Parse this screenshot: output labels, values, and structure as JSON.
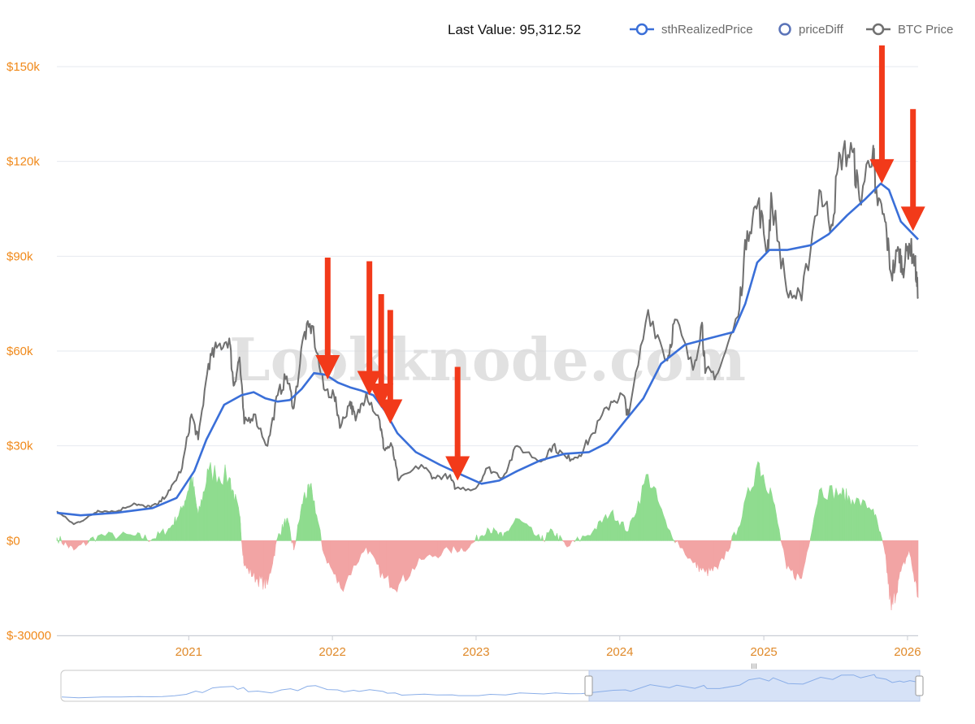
{
  "header": {
    "last_value_label": "Last Value: 95,312.52"
  },
  "legend": [
    {
      "name": "sthRealizedPrice",
      "color": "#3a6fd8"
    },
    {
      "name": "priceDiff",
      "color": "#5a73b8"
    },
    {
      "name": "BTC Price",
      "color": "#707070"
    }
  ],
  "watermark": "Lookknode.com",
  "chart_data": {
    "type": "line",
    "grid": true,
    "legend_position": "top-right",
    "y_ticks": [
      "$150k",
      "$120k",
      "$90k",
      "$60k",
      "$30k",
      "$0",
      "$-30000"
    ],
    "ylim": [
      -30000,
      150000
    ],
    "x_ticks": [
      "2021",
      "2022",
      "2023",
      "2024",
      "2025",
      "2026"
    ],
    "xlim": [
      "2020-02",
      "2026-01"
    ],
    "colors": {
      "sthRealizedPrice": "#3a6fd8",
      "btc_price": "#707070",
      "positive_diff": "#8fdc8f",
      "negative_diff": "#f2a4a4",
      "arrows": "#f23a1a"
    },
    "series": [
      {
        "name": "BTC Price",
        "points": [
          [
            "2020-02-01",
            9300
          ],
          [
            "2020-03-15",
            5200
          ],
          [
            "2020-04-15",
            7000
          ],
          [
            "2020-05-15",
            9500
          ],
          [
            "2020-07-01",
            9200
          ],
          [
            "2020-08-15",
            11800
          ],
          [
            "2020-09-15",
            10600
          ],
          [
            "2020-10-15",
            11500
          ],
          [
            "2020-11-15",
            16000
          ],
          [
            "2020-12-15",
            23000
          ],
          [
            "2021-01-08",
            40000
          ],
          [
            "2021-01-25",
            32000
          ],
          [
            "2021-02-20",
            56000
          ],
          [
            "2021-03-13",
            61000
          ],
          [
            "2021-04-14",
            64000
          ],
          [
            "2021-04-25",
            49000
          ],
          [
            "2021-05-10",
            58000
          ],
          [
            "2021-05-22",
            37000
          ],
          [
            "2021-06-15",
            40000
          ],
          [
            "2021-07-20",
            30000
          ],
          [
            "2021-08-15",
            46000
          ],
          [
            "2021-09-07",
            52000
          ],
          [
            "2021-09-25",
            42000
          ],
          [
            "2021-10-20",
            65000
          ],
          [
            "2021-11-10",
            68000
          ],
          [
            "2021-12-10",
            48000
          ],
          [
            "2022-01-05",
            46000
          ],
          [
            "2022-01-22",
            36000
          ],
          [
            "2022-02-15",
            44000
          ],
          [
            "2022-03-01",
            38000
          ],
          [
            "2022-03-28",
            47000
          ],
          [
            "2022-05-01",
            38000
          ],
          [
            "2022-05-12",
            29000
          ],
          [
            "2022-06-01",
            30000
          ],
          [
            "2022-06-18",
            19000
          ],
          [
            "2022-08-15",
            24000
          ],
          [
            "2022-09-15",
            20000
          ],
          [
            "2022-10-25",
            20500
          ],
          [
            "2022-11-10",
            16500
          ],
          [
            "2022-12-31",
            16500
          ],
          [
            "2023-01-30",
            23000
          ],
          [
            "2023-03-10",
            20000
          ],
          [
            "2023-04-15",
            30000
          ],
          [
            "2023-06-15",
            25000
          ],
          [
            "2023-07-15",
            30000
          ],
          [
            "2023-08-20",
            26000
          ],
          [
            "2023-09-20",
            27000
          ],
          [
            "2023-10-25",
            34000
          ],
          [
            "2023-12-10",
            44000
          ],
          [
            "2024-01-10",
            46000
          ],
          [
            "2024-01-23",
            39000
          ],
          [
            "2024-03-13",
            73000
          ],
          [
            "2024-05-01",
            57000
          ],
          [
            "2024-05-20",
            70000
          ],
          [
            "2024-07-05",
            54000
          ],
          [
            "2024-07-28",
            69000
          ],
          [
            "2024-08-05",
            53000
          ],
          [
            "2024-09-06",
            53000
          ],
          [
            "2024-10-28",
            71000
          ],
          [
            "2024-11-20",
            98000
          ],
          [
            "2024-12-17",
            107000
          ],
          [
            "2025-01-10",
            92000
          ],
          [
            "2025-01-21",
            108000
          ],
          [
            "2025-02-28",
            79000
          ],
          [
            "2025-04-07",
            76000
          ],
          [
            "2025-05-22",
            111000
          ],
          [
            "2025-06-22",
            100000
          ],
          [
            "2025-07-14",
            122000
          ],
          [
            "2025-08-14",
            123000
          ],
          [
            "2025-09-01",
            108000
          ],
          [
            "2025-10-06",
            125000
          ],
          [
            "2025-10-11",
            110000
          ],
          [
            "2025-11-05",
            101000
          ],
          [
            "2025-11-21",
            84000
          ],
          [
            "2025-12-10",
            92000
          ],
          [
            "2025-12-20",
            86000
          ],
          [
            "2026-01-05",
            94000
          ],
          [
            "2026-01-20",
            88000
          ],
          [
            "2026-01-28",
            77000
          ]
        ]
      },
      {
        "name": "sthRealizedPrice",
        "points": [
          [
            "2020-02-01",
            8800
          ],
          [
            "2020-04-01",
            8000
          ],
          [
            "2020-07-01",
            8800
          ],
          [
            "2020-10-01",
            10300
          ],
          [
            "2020-12-01",
            13500
          ],
          [
            "2021-01-15",
            22000
          ],
          [
            "2021-02-15",
            32000
          ],
          [
            "2021-04-01",
            43000
          ],
          [
            "2021-05-15",
            46000
          ],
          [
            "2021-06-15",
            47000
          ],
          [
            "2021-07-15",
            45000
          ],
          [
            "2021-08-15",
            44000
          ],
          [
            "2021-09-15",
            44500
          ],
          [
            "2021-10-15",
            48000
          ],
          [
            "2021-11-15",
            53000
          ],
          [
            "2021-12-15",
            52500
          ],
          [
            "2022-01-15",
            50000
          ],
          [
            "2022-02-15",
            48500
          ],
          [
            "2022-03-15",
            47500
          ],
          [
            "2022-04-15",
            46000
          ],
          [
            "2022-05-15",
            41000
          ],
          [
            "2022-06-15",
            34000
          ],
          [
            "2022-08-01",
            28000
          ],
          [
            "2022-10-01",
            24000
          ],
          [
            "2022-12-01",
            20500
          ],
          [
            "2023-01-15",
            18000
          ],
          [
            "2023-03-01",
            19000
          ],
          [
            "2023-04-15",
            22000
          ],
          [
            "2023-06-15",
            25500
          ],
          [
            "2023-08-15",
            27500
          ],
          [
            "2023-10-15",
            28000
          ],
          [
            "2023-12-01",
            31000
          ],
          [
            "2024-01-15",
            38000
          ],
          [
            "2024-03-01",
            45000
          ],
          [
            "2024-04-15",
            56000
          ],
          [
            "2024-06-15",
            62000
          ],
          [
            "2024-08-15",
            64000
          ],
          [
            "2024-10-15",
            66000
          ],
          [
            "2024-11-15",
            75000
          ],
          [
            "2024-12-15",
            88000
          ],
          [
            "2025-01-15",
            92000
          ],
          [
            "2025-03-01",
            92000
          ],
          [
            "2025-05-01",
            93500
          ],
          [
            "2025-06-15",
            97000
          ],
          [
            "2025-08-01",
            103000
          ],
          [
            "2025-09-15",
            108000
          ],
          [
            "2025-10-25",
            113000
          ],
          [
            "2025-11-15",
            111000
          ],
          [
            "2025-12-15",
            101000
          ],
          [
            "2026-01-28",
            95300
          ]
        ]
      },
      {
        "name": "priceDiff",
        "points": [
          [
            "2020-02-01",
            1000
          ],
          [
            "2020-03-15",
            -3000
          ],
          [
            "2020-05-15",
            1500
          ],
          [
            "2020-08-15",
            1500
          ],
          [
            "2020-10-01",
            500
          ],
          [
            "2020-11-15",
            4000
          ],
          [
            "2020-12-15",
            10000
          ],
          [
            "2021-01-08",
            20000
          ],
          [
            "2021-01-25",
            8000
          ],
          [
            "2021-02-20",
            22000
          ],
          [
            "2021-04-14",
            20000
          ],
          [
            "2021-05-10",
            8000
          ],
          [
            "2021-05-22",
            -8000
          ],
          [
            "2021-06-22",
            -12000
          ],
          [
            "2021-07-20",
            -14000
          ],
          [
            "2021-08-15",
            1000
          ],
          [
            "2021-09-07",
            7000
          ],
          [
            "2021-09-25",
            -3000
          ],
          [
            "2021-10-20",
            14000
          ],
          [
            "2021-11-10",
            16000
          ],
          [
            "2021-12-10",
            -4000
          ],
          [
            "2022-01-22",
            -15000
          ],
          [
            "2022-03-28",
            -2000
          ],
          [
            "2022-05-12",
            -12000
          ],
          [
            "2022-06-18",
            -14000
          ],
          [
            "2022-08-15",
            -6000
          ],
          [
            "2022-10-25",
            -3000
          ],
          [
            "2022-12-15",
            -2000
          ],
          [
            "2023-01-30",
            4000
          ],
          [
            "2023-03-10",
            1000
          ],
          [
            "2023-04-15",
            7000
          ],
          [
            "2023-06-15",
            0
          ],
          [
            "2023-07-15",
            3000
          ],
          [
            "2023-08-20",
            -2000
          ],
          [
            "2023-10-25",
            3000
          ],
          [
            "2023-12-10",
            9000
          ],
          [
            "2024-01-23",
            3000
          ],
          [
            "2024-03-13",
            21000
          ],
          [
            "2024-05-01",
            4000
          ],
          [
            "2024-07-05",
            -7000
          ],
          [
            "2024-08-05",
            -10000
          ],
          [
            "2024-09-06",
            -9000
          ],
          [
            "2024-10-28",
            4000
          ],
          [
            "2024-12-17",
            25000
          ],
          [
            "2025-01-21",
            15000
          ],
          [
            "2025-02-28",
            -9000
          ],
          [
            "2025-04-07",
            -12000
          ],
          [
            "2025-05-22",
            16000
          ],
          [
            "2025-07-14",
            15000
          ],
          [
            "2025-08-14",
            13000
          ],
          [
            "2025-10-06",
            10000
          ],
          [
            "2025-11-05",
            -4000
          ],
          [
            "2025-11-21",
            -22000
          ],
          [
            "2025-12-10",
            -12000
          ],
          [
            "2026-01-05",
            -3000
          ],
          [
            "2026-01-28",
            -18000
          ]
        ]
      }
    ],
    "annotations": {
      "type": "red-down-arrows",
      "count": 7,
      "points": [
        [
          "2021-12-20",
          51000
        ],
        [
          "2022-04-05",
          46000
        ],
        [
          "2022-05-05",
          42000
        ],
        [
          "2022-05-28",
          37000
        ],
        [
          "2022-11-15",
          19000
        ],
        [
          "2025-10-28",
          113000
        ],
        [
          "2026-01-15",
          98000
        ]
      ]
    }
  }
}
